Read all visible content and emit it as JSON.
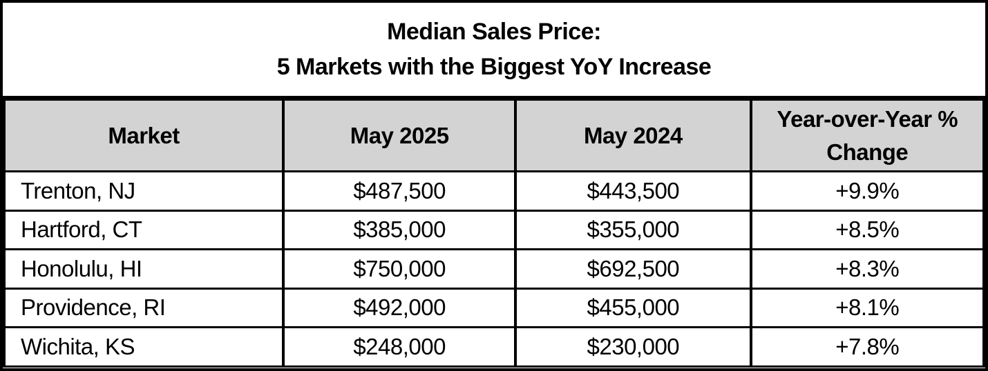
{
  "title": {
    "line1": "Median Sales Price:",
    "line2": "5 Markets with the Biggest YoY Increase"
  },
  "columns": [
    "Market",
    "May 2025",
    "May 2024",
    "Year-over-Year % Change"
  ],
  "rows": [
    {
      "market": "Trenton, NJ",
      "may2025": "$487,500",
      "may2024": "$443,500",
      "yoy": "+9.9%"
    },
    {
      "market": "Hartford, CT",
      "may2025": "$385,000",
      "may2024": "$355,000",
      "yoy": "+8.5%"
    },
    {
      "market": "Honolulu, HI",
      "may2025": "$750,000",
      "may2024": "$692,500",
      "yoy": "+8.3%"
    },
    {
      "market": "Providence, RI",
      "may2025": "$492,000",
      "may2024": "$455,000",
      "yoy": "+8.1%"
    },
    {
      "market": "Wichita, KS",
      "may2025": "$248,000",
      "may2024": "$230,000",
      "yoy": "+7.8%"
    }
  ],
  "colors": {
    "header_bg": "#d3d3d3",
    "border": "#000000",
    "text": "#000000",
    "background": "#ffffff"
  },
  "chart_data": {
    "type": "table",
    "title": "Median Sales Price: 5 Markets with the Biggest YoY Increase",
    "columns": [
      "Market",
      "May 2025",
      "May 2024",
      "Year-over-Year % Change"
    ],
    "rows": [
      [
        "Trenton, NJ",
        487500,
        443500,
        9.9
      ],
      [
        "Hartford, CT",
        385000,
        355000,
        8.5
      ],
      [
        "Honolulu, HI",
        750000,
        692500,
        8.3
      ],
      [
        "Providence, RI",
        492000,
        455000,
        8.1
      ],
      [
        "Wichita, KS",
        248000,
        230000,
        7.8
      ]
    ],
    "value_units": {
      "May 2025": "USD",
      "May 2024": "USD",
      "Year-over-Year % Change": "percent"
    },
    "notes": "Rows sorted descending by year-over-year percent change"
  }
}
